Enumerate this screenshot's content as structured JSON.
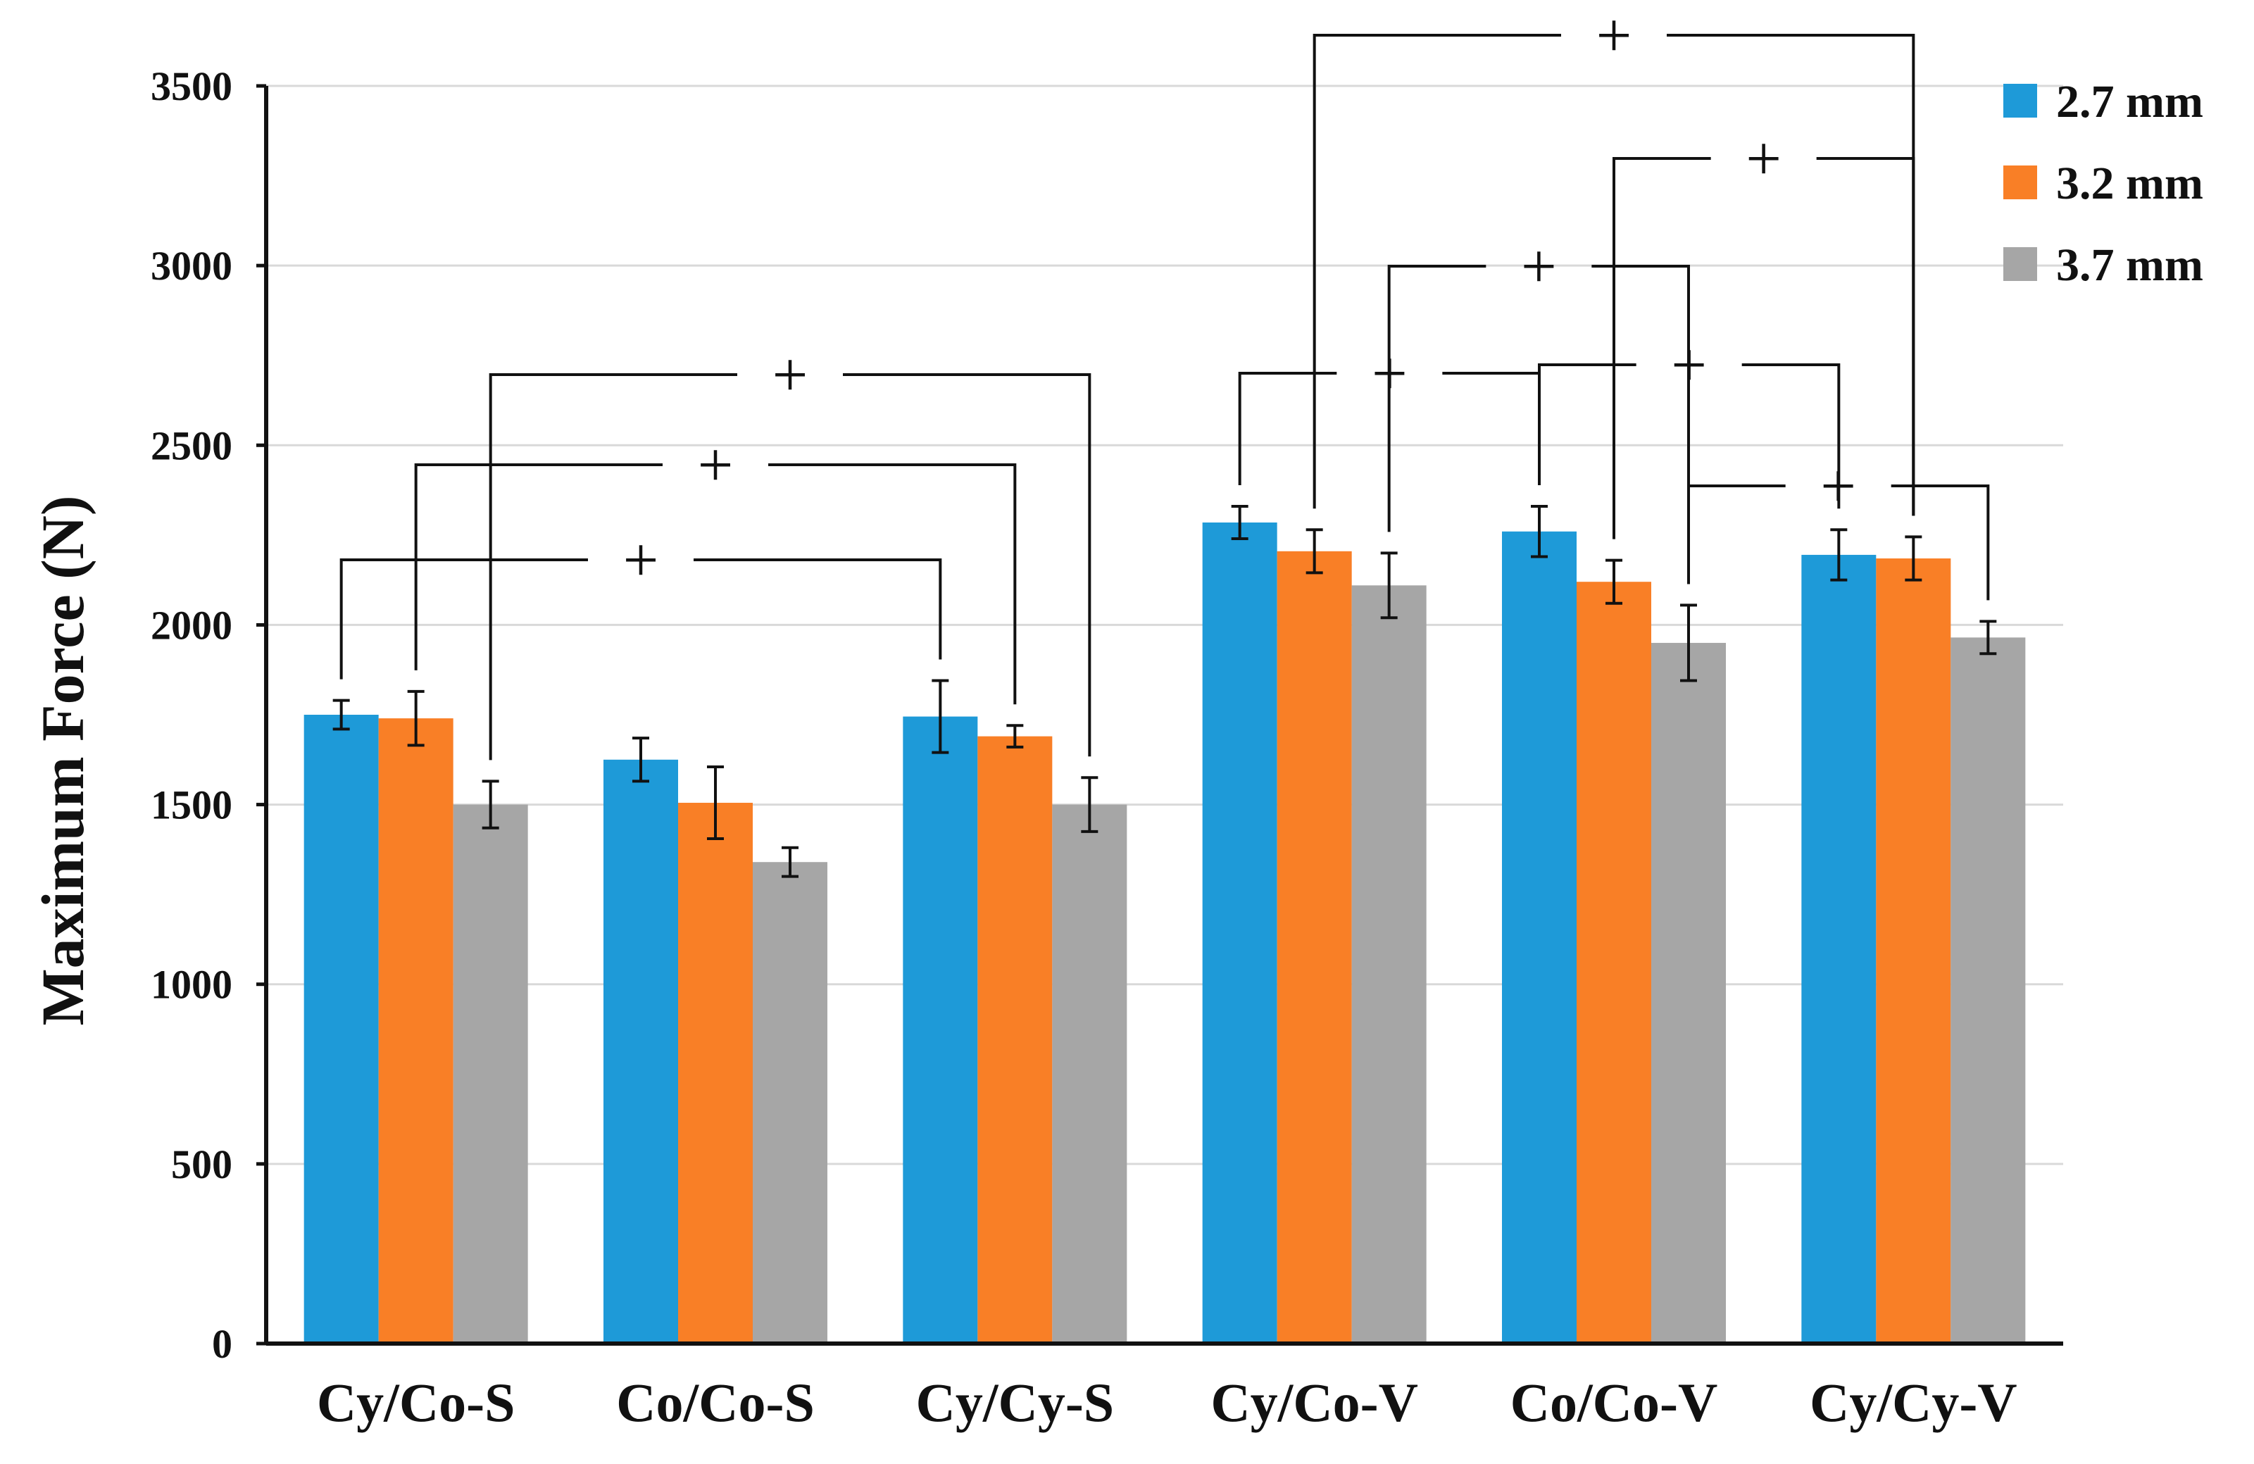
{
  "chart_data": {
    "type": "bar",
    "title": "",
    "xlabel": "",
    "ylabel": "Maximum Force (N)",
    "ylim": [
      0,
      3500
    ],
    "yticks": [
      0,
      500,
      1000,
      1500,
      2000,
      2500,
      3000,
      3500
    ],
    "ytick_labels": [
      "0",
      "500",
      "1000",
      "1500",
      "2000",
      "2500",
      "3000",
      "3500"
    ],
    "grid": true,
    "legend_position": "top-right",
    "categories": [
      "Cy/Co-S",
      "Co/Co-S",
      "Cy/Cy-S",
      "Cy/Co-V",
      "Co/Co-V",
      "Cy/Cy-V"
    ],
    "series": [
      {
        "name": "2.7 mm",
        "color": "#1E9AD8",
        "values": [
          1750,
          1625,
          1745,
          2285,
          2260,
          2195
        ],
        "errors": [
          40,
          60,
          100,
          45,
          70,
          70
        ]
      },
      {
        "name": "3.2 mm",
        "color": "#F97F26",
        "values": [
          1740,
          1505,
          1690,
          2205,
          2120,
          2185
        ],
        "errors": [
          75,
          100,
          30,
          60,
          60,
          60
        ]
      },
      {
        "name": "3.7 mm",
        "color": "#A6A6A6",
        "values": [
          1500,
          1340,
          1500,
          2110,
          1950,
          1965
        ],
        "errors": [
          65,
          40,
          75,
          90,
          105,
          45
        ]
      }
    ],
    "significance": [
      {
        "label": "+",
        "from": {
          "category": 0,
          "series": 0
        },
        "to": {
          "category": 2,
          "series": 0
        }
      },
      {
        "label": "+",
        "from": {
          "category": 0,
          "series": 1
        },
        "to": {
          "category": 2,
          "series": 1
        }
      },
      {
        "label": "+",
        "from": {
          "category": 0,
          "series": 2
        },
        "to": {
          "category": 2,
          "series": 2
        }
      },
      {
        "label": "+",
        "from": {
          "category": 3,
          "series": 0
        },
        "to": {
          "category": 4,
          "series": 0
        }
      },
      {
        "label": "+",
        "from": {
          "category": 3,
          "series": 1
        },
        "to": {
          "category": 5,
          "series": 1
        }
      },
      {
        "label": "+",
        "from": {
          "category": 3,
          "series": 2
        },
        "to": {
          "category": 4,
          "series": 2
        }
      },
      {
        "label": "+",
        "from": {
          "category": 4,
          "series": 0
        },
        "to": {
          "category": 5,
          "series": 0
        }
      },
      {
        "label": "+",
        "from": {
          "category": 4,
          "series": 1
        },
        "to": {
          "category": 5,
          "series": 1
        }
      },
      {
        "label": "+",
        "from": {
          "category": 4,
          "series": 2
        },
        "to": {
          "category": 5,
          "series": 2
        }
      }
    ]
  }
}
